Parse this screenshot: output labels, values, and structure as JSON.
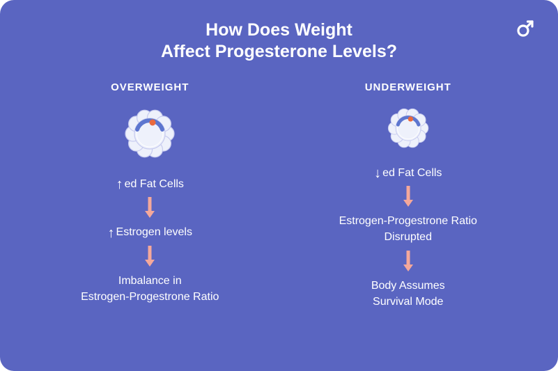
{
  "colors": {
    "background": "#5a65c1",
    "text": "#ffffff",
    "flow_arrow": "#f4a89b",
    "cell_fill": "#eef1fb",
    "cell_stroke": "#c7cbef",
    "cell_accent_blue": "#5d76cf",
    "cell_accent_orange": "#e96a3f",
    "logo_stroke": "#ffffff"
  },
  "typography": {
    "title_fontsize": 25,
    "heading_fontsize": 15,
    "body_fontsize": 16,
    "dir_arrow_fontsize": 20
  },
  "layout": {
    "flow_arrow_w": 14,
    "flow_arrow_h": 30
  },
  "title_line1": "How Does Weight",
  "title_line2": "Affect Progesterone Levels?",
  "left": {
    "heading": "OVERWEIGHT",
    "cell_scale": 1.0,
    "step1_dir": "↑",
    "step1_text": "ed Fat Cells",
    "step2_dir": "↑",
    "step2_text": "Estrogen levels",
    "step3_l1": "Imbalance in",
    "step3_l2": "Estrogen-Progestrone Ratio"
  },
  "right": {
    "heading": "UNDERWEIGHT",
    "cell_scale": 0.82,
    "step1_dir": "↓",
    "step1_text": "ed Fat Cells",
    "step2_l1": "Estrogen-Progestrone Ratio",
    "step2_l2": "Disrupted",
    "step3_l1": "Body Assumes",
    "step3_l2": "Survival Mode"
  }
}
